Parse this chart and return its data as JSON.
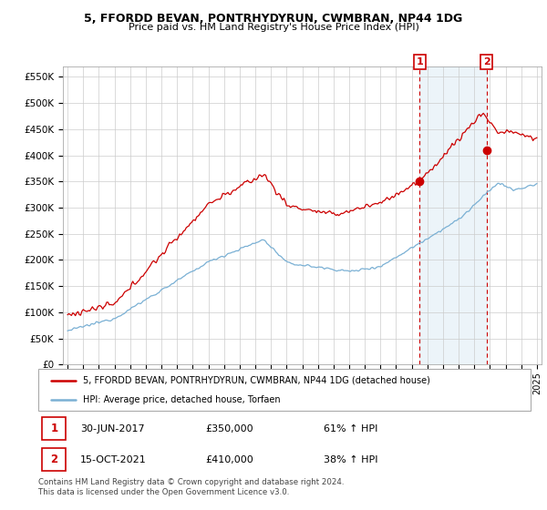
{
  "title": "5, FFORDD BEVAN, PONTRHYDYRUN, CWMBRAN, NP44 1DG",
  "subtitle": "Price paid vs. HM Land Registry's House Price Index (HPI)",
  "ytick_values": [
    0,
    50000,
    100000,
    150000,
    200000,
    250000,
    300000,
    350000,
    400000,
    450000,
    500000,
    550000
  ],
  "xlim": [
    1994.7,
    2025.3
  ],
  "ylim": [
    0,
    570000
  ],
  "purchase1_date": 2017.5,
  "purchase1_price": 350000,
  "purchase1_label": "1",
  "purchase2_date": 2021.79,
  "purchase2_price": 410000,
  "purchase2_label": "2",
  "house_color": "#cc0000",
  "hpi_color": "#7ab0d4",
  "vline_color": "#cc0000",
  "annotation_box_color": "#cc0000",
  "legend_house_label": "5, FFORDD BEVAN, PONTRHYDYRUN, CWMBRAN, NP44 1DG (detached house)",
  "legend_hpi_label": "HPI: Average price, detached house, Torfaen",
  "table_row1": [
    "1",
    "30-JUN-2017",
    "£350,000",
    "61% ↑ HPI"
  ],
  "table_row2": [
    "2",
    "15-OCT-2021",
    "£410,000",
    "38% ↑ HPI"
  ],
  "footer": "Contains HM Land Registry data © Crown copyright and database right 2024.\nThis data is licensed under the Open Government Licence v3.0.",
  "shaded_color": "#daeaf5",
  "shaded_alpha": 0.5
}
